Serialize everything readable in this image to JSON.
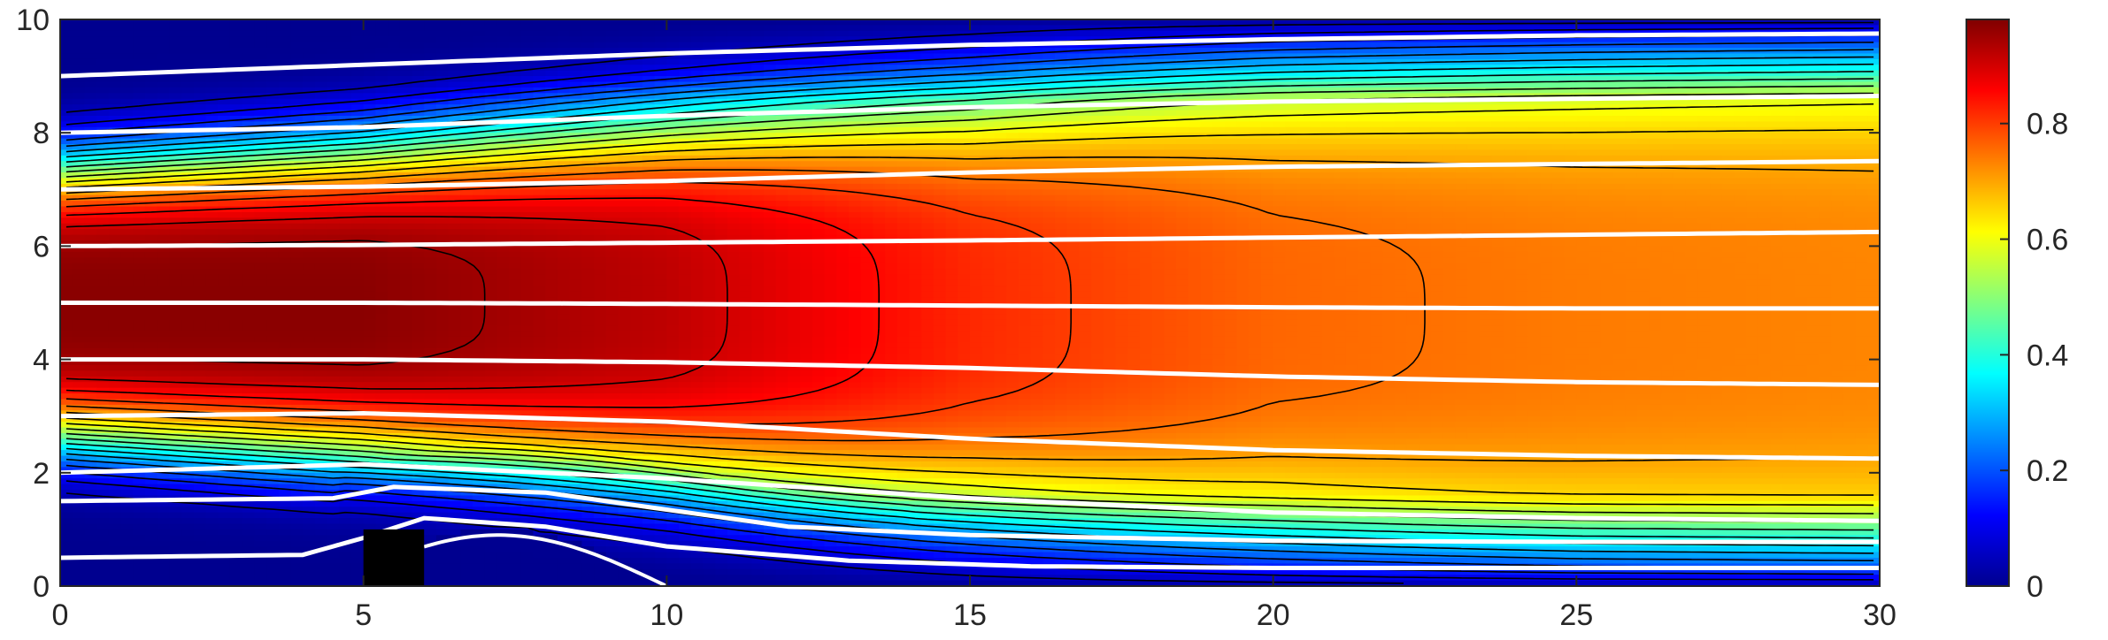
{
  "chart_data": {
    "type": "heatmap",
    "title": "",
    "xlabel": "",
    "ylabel": "",
    "xlim": [
      0,
      30
    ],
    "ylim": [
      0,
      10
    ],
    "x_ticks": [
      0,
      5,
      10,
      15,
      20,
      25,
      30
    ],
    "y_ticks": [
      0,
      2,
      4,
      6,
      8,
      10
    ],
    "x_tick_labels": [
      "0",
      "5",
      "10",
      "15",
      "20",
      "25",
      "30"
    ],
    "y_tick_labels": [
      "0",
      "2",
      "4",
      "6",
      "8",
      "10"
    ],
    "colormap": "jet",
    "colorbar": {
      "location": "right",
      "range": [
        0,
        0.98
      ],
      "ticks": [
        0,
        0.2,
        0.4,
        0.6,
        0.8
      ],
      "tick_labels": [
        "0",
        "0.2",
        "0.4",
        "0.6",
        "0.8"
      ]
    },
    "colormap_stops": [
      "#00008f",
      "#0000ff",
      "#0080ff",
      "#00ffff",
      "#80ff80",
      "#ffff00",
      "#ff8000",
      "#ff0000",
      "#800000"
    ],
    "obstacle": {
      "x": [
        5,
        6
      ],
      "y": [
        0,
        1
      ],
      "color": "#000000"
    },
    "field_profile": {
      "x": [
        0,
        5,
        10,
        15,
        20,
        25,
        30
      ],
      "core_center_y": [
        5.0,
        5.0,
        5.0,
        4.9,
        4.9,
        4.8,
        4.8
      ],
      "core_value": [
        0.97,
        0.97,
        0.92,
        0.82,
        0.76,
        0.74,
        0.73
      ],
      "core_half_width": [
        2.2,
        2.5,
        3.0,
        3.6,
        4.2,
        4.6,
        4.8
      ]
    },
    "streamlines": [
      {
        "x": [
          0,
          5,
          10,
          15,
          20,
          25,
          30
        ],
        "y": [
          9.0,
          9.2,
          9.4,
          9.55,
          9.65,
          9.72,
          9.75
        ]
      },
      {
        "x": [
          0,
          5,
          10,
          15,
          20,
          25,
          30
        ],
        "y": [
          8.0,
          8.1,
          8.3,
          8.45,
          8.55,
          8.6,
          8.65
        ]
      },
      {
        "x": [
          0,
          5,
          10,
          15,
          20,
          25,
          30
        ],
        "y": [
          7.0,
          7.05,
          7.15,
          7.3,
          7.4,
          7.45,
          7.5
        ]
      },
      {
        "x": [
          0,
          5,
          10,
          15,
          20,
          25,
          30
        ],
        "y": [
          6.0,
          6.02,
          6.06,
          6.1,
          6.15,
          6.2,
          6.25
        ]
      },
      {
        "x": [
          0,
          5,
          10,
          15,
          20,
          25,
          30
        ],
        "y": [
          5.0,
          5.0,
          4.98,
          4.95,
          4.92,
          4.9,
          4.9
        ]
      },
      {
        "x": [
          0,
          5,
          10,
          15,
          20,
          25,
          30
        ],
        "y": [
          4.0,
          4.0,
          3.95,
          3.85,
          3.7,
          3.6,
          3.55
        ]
      },
      {
        "x": [
          0,
          5,
          10,
          15,
          20,
          25,
          30
        ],
        "y": [
          3.0,
          3.05,
          2.9,
          2.6,
          2.4,
          2.3,
          2.25
        ]
      },
      {
        "x": [
          0,
          5,
          10,
          15,
          20,
          25,
          30
        ],
        "y": [
          2.0,
          2.15,
          1.9,
          1.55,
          1.3,
          1.2,
          1.15
        ]
      },
      {
        "x": [
          0,
          4.5,
          5.5,
          8,
          10,
          12,
          15,
          20,
          25,
          30
        ],
        "y": [
          1.5,
          1.55,
          1.75,
          1.65,
          1.35,
          1.05,
          0.9,
          0.8,
          0.78,
          0.78
        ]
      },
      {
        "x": [
          0,
          4,
          5,
          6,
          8,
          10,
          13,
          16,
          20,
          25,
          30
        ],
        "y": [
          0.5,
          0.55,
          0.85,
          1.2,
          1.05,
          0.7,
          0.45,
          0.35,
          0.32,
          0.32,
          0.32
        ]
      }
    ],
    "recirculation": {
      "x_start": 6,
      "x_end": 10,
      "height": 1.0
    }
  }
}
